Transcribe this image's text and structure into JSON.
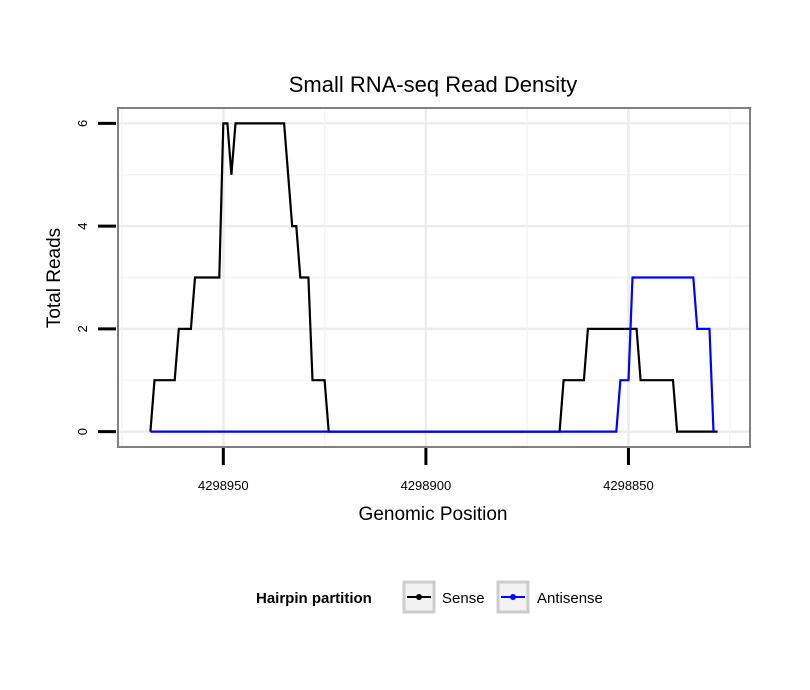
{
  "chart_data": {
    "type": "line",
    "title": "Small RNA-seq Read Density",
    "xlabel": "Genomic Position",
    "ylabel": "Total Reads",
    "x_axis_reversed": true,
    "xlim": [
      4298976,
      4298820
    ],
    "ylim": [
      -0.3,
      6.3
    ],
    "x_ticks": [
      4298950,
      4298900,
      4298850
    ],
    "x_tick_labels": [
      "4298950",
      "4298900",
      "4298850"
    ],
    "y_ticks": [
      0,
      2,
      4,
      6
    ],
    "y_tick_labels": [
      "0",
      "2",
      "4",
      "6"
    ],
    "grid": true,
    "legend": {
      "title": "Hairpin partition",
      "position": "bottom",
      "entries": [
        "Sense",
        "Antisense"
      ]
    },
    "series": [
      {
        "name": "Sense",
        "color": "#000000",
        "points": [
          [
            4298968,
            0
          ],
          [
            4298967,
            1
          ],
          [
            4298962,
            1
          ],
          [
            4298961,
            2
          ],
          [
            4298958,
            2
          ],
          [
            4298957,
            3
          ],
          [
            4298951,
            3
          ],
          [
            4298950,
            6
          ],
          [
            4298949,
            6
          ],
          [
            4298948,
            5
          ],
          [
            4298947,
            6
          ],
          [
            4298935,
            6
          ],
          [
            4298933,
            4
          ],
          [
            4298932,
            4
          ],
          [
            4298931,
            3
          ],
          [
            4298929,
            3
          ],
          [
            4298928,
            1
          ],
          [
            4298925,
            1
          ],
          [
            4298924,
            0
          ],
          [
            4298867,
            0
          ],
          [
            4298866,
            1
          ],
          [
            4298861,
            1
          ],
          [
            4298860,
            2
          ],
          [
            4298848,
            2
          ],
          [
            4298847,
            1
          ],
          [
            4298839,
            1
          ],
          [
            4298838,
            0
          ],
          [
            4298828,
            0
          ]
        ]
      },
      {
        "name": "Antisense",
        "color": "#0000ff",
        "points": [
          [
            4298968,
            0
          ],
          [
            4298853,
            0
          ],
          [
            4298852,
            1
          ],
          [
            4298850,
            1
          ],
          [
            4298849,
            3
          ],
          [
            4298834,
            3
          ],
          [
            4298833,
            2
          ],
          [
            4298830,
            2
          ],
          [
            4298829,
            0
          ]
        ]
      }
    ]
  }
}
